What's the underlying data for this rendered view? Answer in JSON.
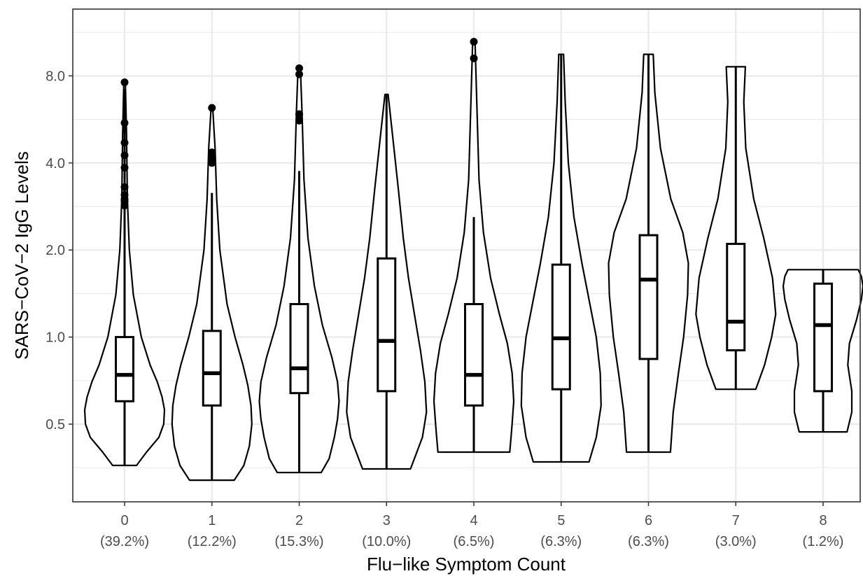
{
  "chart_data": {
    "type": "violin",
    "xlabel": "Flu−like Symptom Count",
    "ylabel": "SARS−CoV−2 IgG Levels",
    "y_scale": "log2",
    "ylim": [
      0.28,
      11.6
    ],
    "y_ticks": [
      0.5,
      1.0,
      2.0,
      4.0,
      8.0
    ],
    "y_tick_labels": [
      "0.5",
      "1.0",
      "2.0",
      "4.0",
      "8.0"
    ],
    "grid": true,
    "categories": [
      {
        "label": "0",
        "share": "(39.2%)",
        "min": 0.36,
        "max": 7.6,
        "q1": 0.6,
        "median": 0.74,
        "q3": 1.0,
        "wlo": 0.36,
        "whi": 7.2,
        "outliers": [
          7.6,
          5.5,
          4.7,
          4.25,
          3.85,
          3.3,
          3.1,
          3.0,
          2.95,
          2.85
        ],
        "profile": [
          [
            0.36,
            0.3
          ],
          [
            0.4,
            0.55
          ],
          [
            0.45,
            0.86
          ],
          [
            0.5,
            0.98
          ],
          [
            0.56,
            1.0
          ],
          [
            0.62,
            0.94
          ],
          [
            0.7,
            0.82
          ],
          [
            0.8,
            0.64
          ],
          [
            1.0,
            0.42
          ],
          [
            1.4,
            0.22
          ],
          [
            2.0,
            0.12
          ],
          [
            3.0,
            0.07
          ],
          [
            5.0,
            0.05
          ],
          [
            7.6,
            0.02
          ]
        ]
      },
      {
        "label": "1",
        "share": "(12.2%)",
        "min": 0.32,
        "max": 6.2,
        "q1": 0.58,
        "median": 0.75,
        "q3": 1.05,
        "wlo": 0.32,
        "whi": 3.15,
        "outliers": [
          6.2,
          4.35,
          4.15,
          4.05,
          4.0
        ],
        "profile": [
          [
            0.32,
            0.56
          ],
          [
            0.36,
            0.8
          ],
          [
            0.42,
            0.94
          ],
          [
            0.5,
            1.0
          ],
          [
            0.58,
            0.98
          ],
          [
            0.68,
            0.9
          ],
          [
            0.8,
            0.78
          ],
          [
            1.0,
            0.58
          ],
          [
            1.3,
            0.38
          ],
          [
            2.0,
            0.2
          ],
          [
            3.0,
            0.12
          ],
          [
            4.5,
            0.08
          ],
          [
            6.2,
            0.02
          ]
        ]
      },
      {
        "label": "2",
        "share": "(15.3%)",
        "min": 0.34,
        "max": 8.5,
        "q1": 0.64,
        "median": 0.78,
        "q3": 1.3,
        "wlo": 0.34,
        "whi": 3.75,
        "outliers": [
          8.5,
          8.1,
          5.9,
          5.6
        ],
        "profile": [
          [
            0.34,
            0.55
          ],
          [
            0.38,
            0.75
          ],
          [
            0.45,
            0.88
          ],
          [
            0.52,
            0.96
          ],
          [
            0.6,
            1.0
          ],
          [
            0.7,
            0.96
          ],
          [
            0.85,
            0.82
          ],
          [
            1.1,
            0.58
          ],
          [
            1.5,
            0.38
          ],
          [
            2.2,
            0.22
          ],
          [
            3.5,
            0.12
          ],
          [
            6.0,
            0.07
          ],
          [
            8.5,
            0.03
          ]
        ]
      },
      {
        "label": "3",
        "share": "(10.0%)",
        "min": 0.35,
        "max": 6.9,
        "q1": 0.65,
        "median": 0.97,
        "q3": 1.87,
        "wlo": 0.35,
        "whi": 6.9,
        "outliers": [],
        "profile": [
          [
            0.35,
            0.6
          ],
          [
            0.45,
            0.9
          ],
          [
            0.55,
            1.0
          ],
          [
            0.7,
            0.96
          ],
          [
            0.9,
            0.85
          ],
          [
            1.2,
            0.7
          ],
          [
            1.6,
            0.55
          ],
          [
            2.2,
            0.42
          ],
          [
            3.2,
            0.3
          ],
          [
            5.0,
            0.15
          ],
          [
            6.9,
            0.04
          ]
        ]
      },
      {
        "label": "4",
        "share": "(6.5%)",
        "min": 0.4,
        "max": 10.5,
        "q1": 0.58,
        "median": 0.74,
        "q3": 1.3,
        "wlo": 0.4,
        "whi": 2.6,
        "outliers": [
          10.5,
          9.2
        ],
        "profile": [
          [
            0.4,
            0.9
          ],
          [
            0.48,
            0.95
          ],
          [
            0.6,
            1.0
          ],
          [
            0.75,
            0.96
          ],
          [
            0.95,
            0.84
          ],
          [
            1.2,
            0.64
          ],
          [
            1.6,
            0.42
          ],
          [
            2.3,
            0.24
          ],
          [
            3.5,
            0.13
          ],
          [
            6.0,
            0.08
          ],
          [
            10.5,
            0.03
          ]
        ]
      },
      {
        "label": "5",
        "share": "(6.3%)",
        "min": 0.37,
        "max": 9.5,
        "q1": 0.66,
        "median": 0.99,
        "q3": 1.78,
        "wlo": 0.37,
        "whi": 9.5,
        "outliers": [],
        "profile": [
          [
            0.37,
            0.7
          ],
          [
            0.45,
            0.88
          ],
          [
            0.58,
            1.0
          ],
          [
            0.75,
            0.98
          ],
          [
            1.0,
            0.88
          ],
          [
            1.3,
            0.72
          ],
          [
            1.8,
            0.52
          ],
          [
            2.6,
            0.32
          ],
          [
            4.0,
            0.18
          ],
          [
            6.5,
            0.1
          ],
          [
            9.5,
            0.06
          ]
        ]
      },
      {
        "label": "6",
        "share": "(6.3%)",
        "min": 0.4,
        "max": 9.5,
        "q1": 0.84,
        "median": 1.58,
        "q3": 2.25,
        "wlo": 0.4,
        "whi": 9.5,
        "outliers": [],
        "profile": [
          [
            0.4,
            0.55
          ],
          [
            0.55,
            0.62
          ],
          [
            0.75,
            0.75
          ],
          [
            1.0,
            0.88
          ],
          [
            1.4,
            0.98
          ],
          [
            1.8,
            1.0
          ],
          [
            2.3,
            0.86
          ],
          [
            3.0,
            0.56
          ],
          [
            4.5,
            0.3
          ],
          [
            7.0,
            0.16
          ],
          [
            9.5,
            0.12
          ]
        ]
      },
      {
        "label": "7",
        "share": "(3.0%)",
        "min": 0.66,
        "max": 8.6,
        "q1": 0.9,
        "median": 1.13,
        "q3": 2.1,
        "wlo": 0.66,
        "whi": 8.6,
        "outliers": [],
        "profile": [
          [
            0.66,
            0.5
          ],
          [
            0.8,
            0.72
          ],
          [
            1.0,
            0.9
          ],
          [
            1.2,
            1.0
          ],
          [
            1.6,
            0.92
          ],
          [
            2.2,
            0.7
          ],
          [
            3.0,
            0.45
          ],
          [
            4.5,
            0.25
          ],
          [
            6.5,
            0.2
          ],
          [
            8.6,
            0.24
          ]
        ]
      },
      {
        "label": "8",
        "share": "(1.2%)",
        "min": 0.47,
        "max": 1.71,
        "q1": 0.65,
        "median": 1.1,
        "q3": 1.53,
        "wlo": 0.47,
        "whi": 1.71,
        "outliers": [],
        "profile": [
          [
            0.47,
            0.6
          ],
          [
            0.55,
            0.72
          ],
          [
            0.65,
            0.72
          ],
          [
            0.8,
            0.62
          ],
          [
            0.95,
            0.66
          ],
          [
            1.15,
            0.84
          ],
          [
            1.35,
            0.96
          ],
          [
            1.5,
            1.0
          ],
          [
            1.62,
            0.96
          ],
          [
            1.71,
            0.88
          ]
        ]
      }
    ]
  }
}
